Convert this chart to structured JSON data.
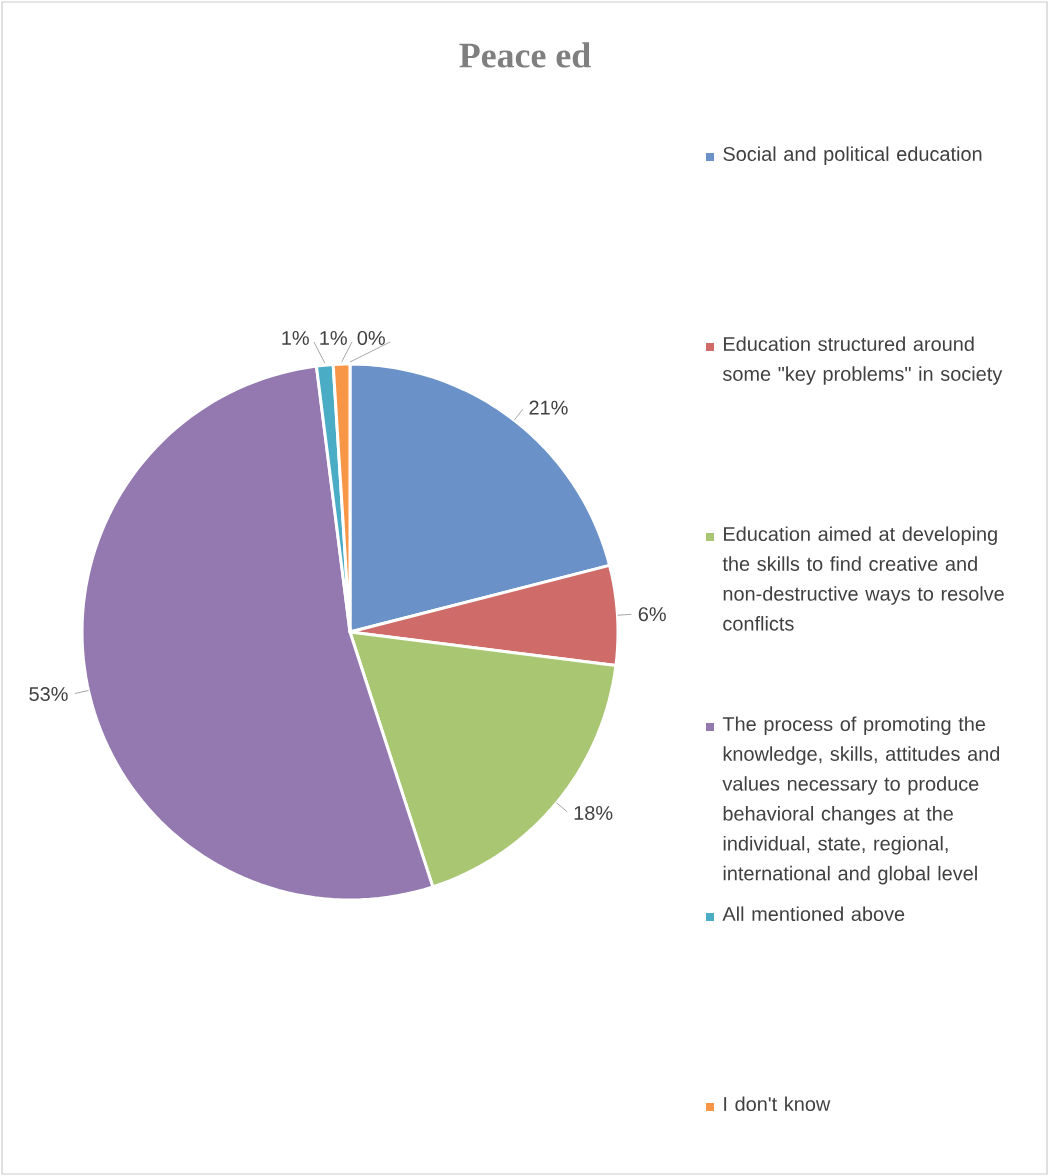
{
  "chart_data": {
    "type": "pie",
    "title": "Peace ed",
    "categories": [
      "Social and political education",
      "Education structured around some \"key problems\" in society",
      "Education aimed at developing the skills to find creative and non-destructive ways to resolve conflicts",
      "The process of promoting the knowledge, skills, attitudes and values necessary to produce behavioral changes at the individual, state, regional, international and global level",
      "All mentioned above",
      "I don't know",
      null
    ],
    "values": [
      21,
      6,
      18,
      53,
      1,
      1,
      0
    ],
    "value_labels": [
      "21%",
      "6%",
      "18%",
      "53%",
      "1%",
      "1%",
      "0%"
    ],
    "colors": [
      "#6a92c8",
      "#cf6b68",
      "#a9c672",
      "#9479b0",
      "#4bacc6",
      "#f79646",
      "#1f497d"
    ],
    "legend": "right"
  }
}
